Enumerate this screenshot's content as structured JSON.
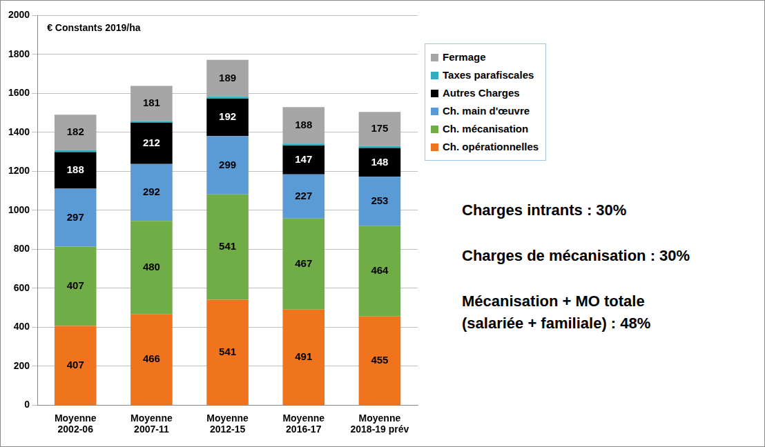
{
  "chart_data": {
    "type": "bar",
    "stacked": true,
    "ylabel": "€ Constants 2019/ha",
    "categories": [
      "Moyenne\n2002-06",
      "Moyenne\n2007-11",
      "Moyenne\n2012-15",
      "Moyenne\n2016-17",
      "Moyenne\n2018-19 prév"
    ],
    "series": [
      {
        "name": "Ch. opérationnelles",
        "color": "#f0731e",
        "values": [
          407,
          466,
          541,
          491,
          455
        ]
      },
      {
        "name": "Ch. mécanisation",
        "color": "#70ad47",
        "values": [
          407,
          480,
          541,
          467,
          464
        ]
      },
      {
        "name": "Ch. main d'œuvre",
        "color": "#5b9bd5",
        "values": [
          297,
          292,
          299,
          227,
          253
        ]
      },
      {
        "name": "Autres Charges",
        "color": "#000000",
        "values": [
          188,
          212,
          192,
          147,
          148
        ]
      },
      {
        "name": "Taxes parafiscales",
        "color": "#2eaebf",
        "values": [
          10,
          8,
          10,
          10,
          10
        ],
        "value_labels": [
          null,
          null,
          null,
          null,
          null
        ]
      },
      {
        "name": "Fermage",
        "color": "#a6a6a6",
        "values": [
          182,
          181,
          189,
          188,
          175
        ]
      }
    ],
    "ylim": [
      0,
      2000
    ],
    "yticks": [
      0,
      200,
      400,
      600,
      800,
      1000,
      1200,
      1400,
      1600,
      1800,
      2000
    ],
    "grid": true,
    "legend": "right",
    "data_labels": true,
    "annotations": [
      "Charges intrants : 30%",
      "Charges de mécanisation : 30%",
      "Mécanisation  + MO totale\n(salariée + familiale) : 48%"
    ]
  }
}
